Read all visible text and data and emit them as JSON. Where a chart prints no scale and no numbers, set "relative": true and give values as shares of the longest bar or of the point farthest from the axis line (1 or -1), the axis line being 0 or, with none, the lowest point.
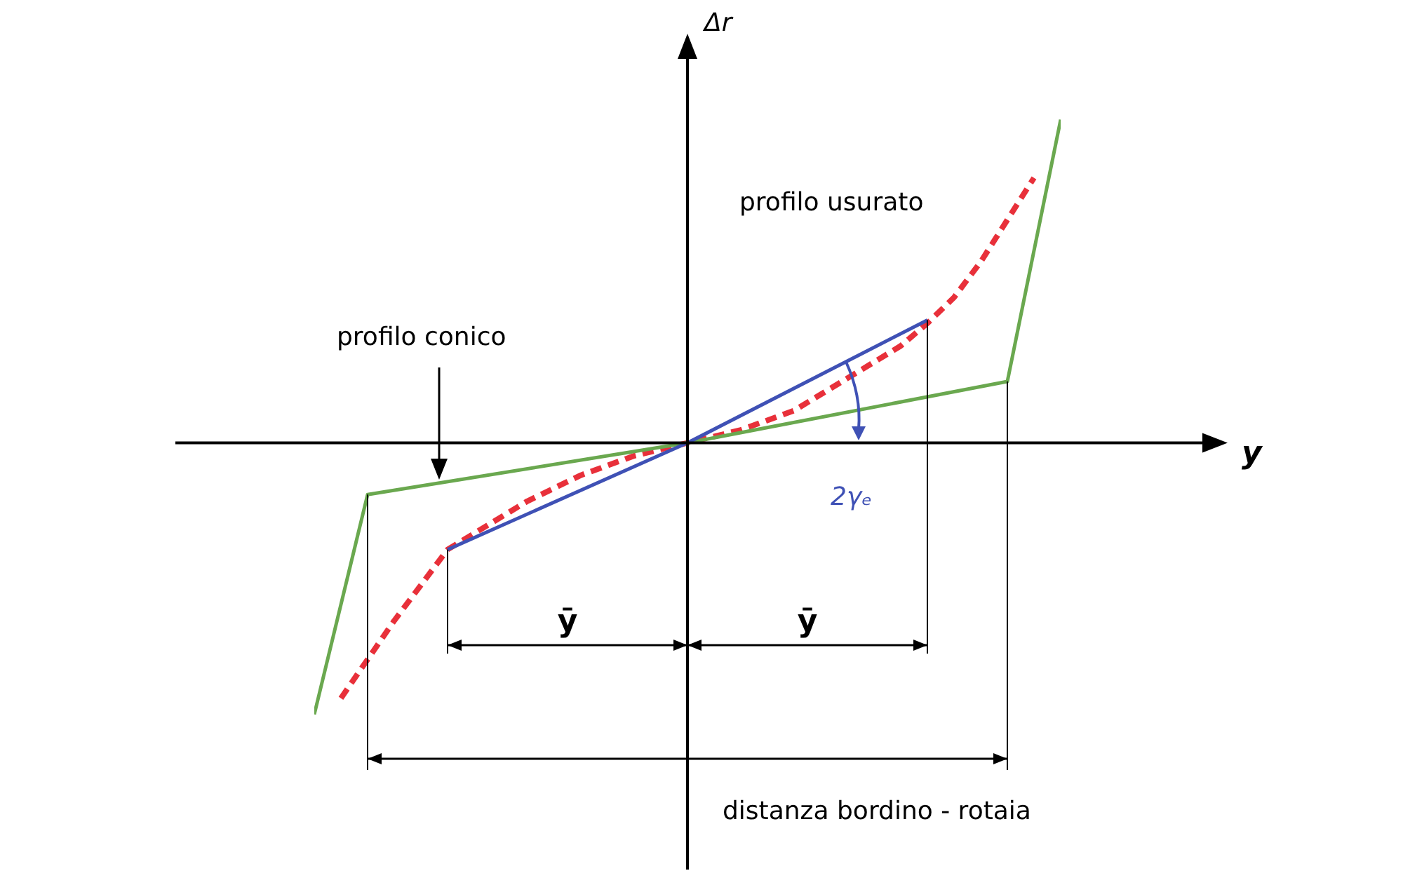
{
  "chart_data": {
    "type": "line",
    "relative": true,
    "categories": [
      null,
      null,
      null,
      null,
      null,
      null,
      null,
      null,
      null,
      null,
      null,
      null,
      null,
      null,
      null,
      null,
      null,
      null,
      null,
      null,
      null,
      null,
      null,
      null,
      null,
      null,
      null,
      null,
      null
    ],
    "series": [
      {
        "color": "#6aa84f",
        "values": [
          -0.84,
          null,
          -0.16,
          null,
          null,
          null,
          null,
          null,
          null,
          null,
          null,
          null,
          null,
          null,
          0,
          null,
          null,
          null,
          null,
          null,
          null,
          null,
          null,
          null,
          null,
          null,
          0.19,
          null,
          1
        ]
      },
      {
        "color": "#3f51b5",
        "values": [
          null,
          null,
          null,
          null,
          null,
          -0.33,
          null,
          null,
          null,
          null,
          null,
          null,
          null,
          null,
          0,
          null,
          null,
          null,
          null,
          null,
          null,
          null,
          null,
          0.38,
          null,
          null,
          null,
          null,
          null
        ]
      },
      {
        "color": "#e8303a",
        "line_style": "dashed",
        "values": [
          null,
          -0.79,
          -0.67,
          -0.55,
          -0.44,
          -0.33,
          -0.28,
          null,
          -0.18,
          null,
          -0.1,
          null,
          -0.04,
          null,
          0,
          null,
          0.04,
          null,
          0.1,
          null,
          0.2,
          null,
          0.3,
          0.37,
          0.45,
          0.56,
          0.69,
          0.82,
          null
        ]
      }
    ],
    "annotations": [
      "profilo usurato",
      "profilo conico",
      "2γₑ",
      "ȳ",
      "ȳ",
      "distanza bordino - rotaia",
      "y",
      "Δr"
    ]
  }
}
